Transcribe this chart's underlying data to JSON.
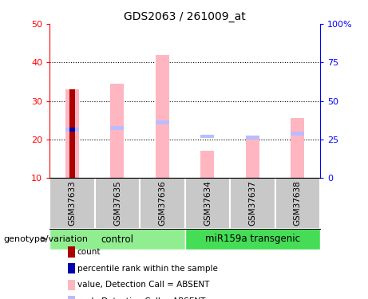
{
  "title": "GDS2063 / 261009_at",
  "samples": [
    "GSM37633",
    "GSM37635",
    "GSM37636",
    "GSM37634",
    "GSM37637",
    "GSM37638"
  ],
  "ylim_left": [
    10,
    50
  ],
  "ylim_right": [
    0,
    100
  ],
  "yticks_left": [
    10,
    20,
    30,
    40,
    50
  ],
  "yticks_right": [
    0,
    25,
    50,
    75,
    100
  ],
  "ytick_labels_right": [
    "0",
    "25",
    "50",
    "75",
    "100%"
  ],
  "bar_value_pink": [
    33.0,
    34.5,
    42.0,
    17.0,
    20.5,
    25.5
  ],
  "bar_rank_blue": [
    22.5,
    23.0,
    24.5,
    20.8,
    20.5,
    21.5
  ],
  "count_value": 33.0,
  "percentile_value": 22.5,
  "color_pink": "#FFB6C1",
  "color_light_blue": "#BBBBFF",
  "color_dark_red": "#AA0000",
  "color_dark_blue": "#0000AA",
  "color_control": "#90EE90",
  "color_mir": "#44DD55",
  "color_sample_bg": "#C8C8C8",
  "legend_items": [
    {
      "label": "count",
      "color": "#AA0000"
    },
    {
      "label": "percentile rank within the sample",
      "color": "#0000AA"
    },
    {
      "label": "value, Detection Call = ABSENT",
      "color": "#FFB6C1"
    },
    {
      "label": "rank, Detection Call = ABSENT",
      "color": "#BBBBFF"
    }
  ],
  "bottom_label": "genotype/variation",
  "chart_bg": "#FFFFFF"
}
